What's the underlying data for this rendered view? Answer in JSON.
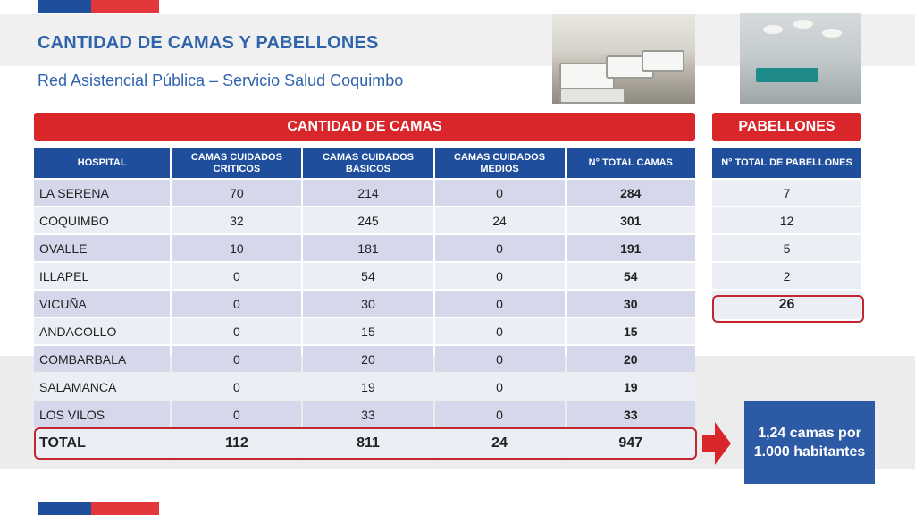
{
  "header": {
    "title": "CANTIDAD DE CAMAS Y PABELLONES",
    "subtitle": "Red Asistencial Pública – Servicio Salud Coquimbo"
  },
  "camas": {
    "banner": "CANTIDAD DE CAMAS",
    "headers": [
      "HOSPITAL",
      "CAMAS CUIDADOS CRITICOS",
      "CAMAS CUIDADOS BASICOS",
      "CAMAS CUIDADOS MEDIOS",
      "N° TOTAL CAMAS"
    ],
    "rows": [
      [
        "LA SERENA",
        "70",
        "214",
        "0",
        "284"
      ],
      [
        "COQUIMBO",
        "32",
        "245",
        "24",
        "301"
      ],
      [
        "OVALLE",
        "10",
        "181",
        "0",
        "191"
      ],
      [
        "ILLAPEL",
        "0",
        "54",
        "0",
        "54"
      ],
      [
        "VICUÑA",
        "0",
        "30",
        "0",
        "30"
      ],
      [
        "ANDACOLLO",
        "0",
        "15",
        "0",
        "15"
      ],
      [
        "COMBARBALA",
        "0",
        "20",
        "0",
        "20"
      ],
      [
        "SALAMANCA",
        "0",
        "19",
        "0",
        "19"
      ],
      [
        "LOS VILOS",
        "0",
        "33",
        "0",
        "33"
      ]
    ],
    "total": [
      "TOTAL",
      "112",
      "811",
      "24",
      "947"
    ]
  },
  "pabellones": {
    "banner": "PABELLONES",
    "header": "N° TOTAL DE PABELLONES",
    "values": [
      "7",
      "12",
      "5",
      "2"
    ],
    "total": "26"
  },
  "callout": {
    "text": "1,24 camas por 1.000 habitantes"
  },
  "colors": {
    "accent_red": "#d8262b",
    "header_blue": "#1f4f9c",
    "title_blue": "#2f64ad",
    "row_dark": "#d5d8ea",
    "row_light": "#eceef6"
  },
  "icons": {
    "arrow": "right-arrow-icon"
  }
}
